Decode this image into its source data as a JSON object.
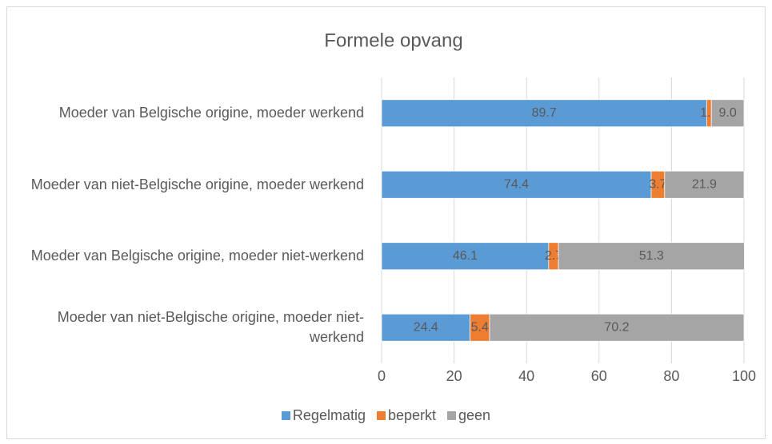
{
  "chart_data": {
    "type": "stacked_hbar",
    "title": "Formele opvang",
    "categories": [
      "Moeder van Belgische origine, moeder werkend",
      "Moeder van niet-Belgische origine, moeder werkend",
      "Moeder van Belgische origine, moeder niet-werkend",
      "Moeder van niet-Belgische origine, moeder niet-werkend"
    ],
    "series": [
      {
        "name": "Regelmatig",
        "color": "#5b9bd5",
        "values": [
          89.7,
          74.4,
          46.1,
          24.4
        ],
        "value_labels": [
          "89.7",
          "74.4",
          "46.1",
          "24.4"
        ]
      },
      {
        "name": "beperkt",
        "color": "#ed7d31",
        "values": [
          1.3,
          3.7,
          2.7,
          5.4
        ],
        "value_labels": [
          "1.3",
          "3.7",
          "2.7",
          "5.4"
        ]
      },
      {
        "name": "geen",
        "color": "#a5a5a5",
        "values": [
          9,
          21.9,
          51.3,
          70.2
        ],
        "value_labels": [
          "9.0",
          "21.9",
          "51.3",
          "70.2"
        ]
      }
    ],
    "xlim": [
      0,
      100
    ],
    "xticks": [
      0,
      20,
      40,
      60,
      80,
      100
    ],
    "grid": true,
    "legend": "bottom"
  }
}
